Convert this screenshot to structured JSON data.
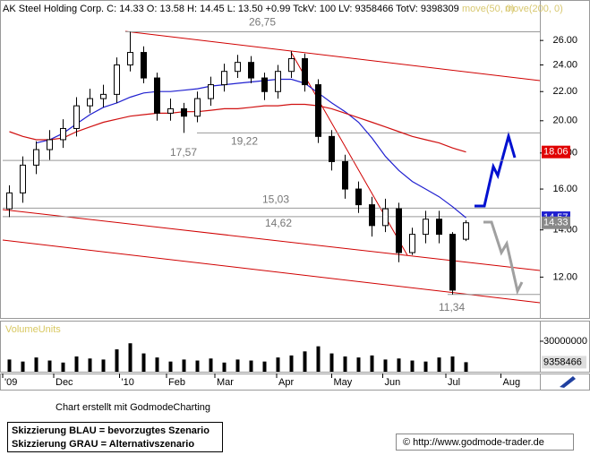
{
  "chart_data": {
    "type": "candlestick",
    "title": "AK Steel Holding Corp. C: 14.33 O: 13.58 H: 14.45 L: 13.50 +0.99 TckV: 100 LV: 9358466 TotV: 9398309",
    "log_scale": true,
    "xlim": [
      -0.5,
      39.5
    ],
    "xticks": [
      {
        "value": -0.5,
        "label": "'09"
      },
      {
        "value": 3.3,
        "label": "Dec"
      },
      {
        "value": 8.2,
        "label": "'10"
      },
      {
        "value": 11.7,
        "label": "Feb"
      },
      {
        "value": 15.3,
        "label": "Mar"
      },
      {
        "value": 19.9,
        "label": "Apr"
      },
      {
        "value": 24,
        "label": "May"
      },
      {
        "value": 27.8,
        "label": "Jun"
      },
      {
        "value": 32.5,
        "label": "Jul"
      },
      {
        "value": 36.6,
        "label": "Aug"
      }
    ],
    "ylim": [
      10.5,
      29.5
    ],
    "yticks": [
      {
        "value": 12,
        "label": "12.00"
      },
      {
        "value": 14,
        "label": "14.00"
      },
      {
        "value": 16,
        "label": "16.00"
      },
      {
        "value": 18,
        "label": "18.00"
      },
      {
        "value": 20,
        "label": "20.00"
      },
      {
        "value": 22,
        "label": "22.00"
      },
      {
        "value": 24,
        "label": "24.00"
      },
      {
        "value": 26,
        "label": "26.00"
      }
    ],
    "x": [
      0,
      1,
      2,
      3,
      4,
      5,
      6,
      7,
      8,
      9,
      10,
      11,
      12,
      13,
      14,
      15,
      16,
      17,
      18,
      19,
      20,
      21,
      22,
      23,
      24,
      25,
      26,
      27,
      28,
      29,
      30,
      31,
      32,
      33,
      34
    ],
    "open": [
      15.0,
      15.8,
      17.3,
      18.2,
      18.8,
      19.5,
      21.0,
      21.5,
      21.8,
      24.0,
      25.0,
      23.0,
      20.5,
      20.8,
      20.3,
      21.5,
      22.5,
      23.5,
      24.2,
      23.0,
      22.0,
      23.5,
      24.5,
      22.5,
      19.0,
      17.5,
      16.0,
      15.2,
      14.2,
      15.0,
      13.0,
      13.8,
      14.5,
      13.8,
      13.58
    ],
    "high": [
      16.2,
      17.8,
      18.7,
      19.4,
      20.1,
      21.6,
      22.2,
      22.5,
      24.6,
      26.75,
      25.5,
      23.4,
      21.5,
      21.2,
      22.0,
      23.1,
      24.1,
      24.8,
      24.7,
      23.4,
      24.0,
      25.1,
      24.9,
      22.9,
      19.4,
      17.9,
      16.4,
      15.6,
      15.5,
      15.3,
      14.1,
      14.9,
      14.9,
      13.9,
      14.45
    ],
    "low": [
      14.6,
      15.3,
      16.8,
      17.6,
      18.3,
      19.0,
      20.5,
      20.9,
      21.2,
      23.5,
      22.6,
      20.0,
      20.0,
      19.22,
      19.9,
      21.0,
      22.0,
      23.0,
      22.6,
      21.4,
      21.5,
      23.0,
      22.0,
      18.6,
      17.0,
      15.5,
      14.8,
      13.7,
      13.9,
      12.6,
      12.9,
      13.4,
      13.4,
      11.34,
      13.5
    ],
    "close": [
      15.8,
      17.3,
      18.2,
      18.8,
      19.5,
      21.0,
      21.5,
      21.8,
      24.0,
      25.0,
      23.0,
      20.5,
      20.8,
      20.3,
      21.5,
      22.5,
      23.5,
      24.2,
      23.0,
      22.0,
      23.5,
      24.5,
      22.5,
      19.0,
      17.5,
      16.0,
      15.2,
      14.2,
      15.0,
      13.0,
      13.8,
      14.5,
      13.8,
      11.5,
      14.33
    ],
    "color": "#000000",
    "series": [
      {
        "name": "move(50, 0)",
        "color": "#2020d0",
        "values": [
          null,
          null,
          18.6,
          18.8,
          19.2,
          19.8,
          20.4,
          20.9,
          21.2,
          21.6,
          21.9,
          22.0,
          22.0,
          22.1,
          22.2,
          22.4,
          22.5,
          22.6,
          22.7,
          22.8,
          22.9,
          22.9,
          22.6,
          21.9,
          21.2,
          20.6,
          19.9,
          18.9,
          17.8,
          17.0,
          16.4,
          16.0,
          15.6,
          15.1,
          14.57
        ]
      },
      {
        "name": "move(200, 0)",
        "color": "#d01010",
        "values": [
          19.3,
          19.0,
          18.8,
          18.8,
          18.9,
          19.3,
          19.6,
          19.9,
          20.1,
          20.3,
          20.4,
          20.5,
          20.5,
          20.6,
          20.6,
          20.7,
          20.8,
          20.8,
          20.9,
          21.0,
          21.0,
          21.1,
          21.1,
          21.0,
          20.8,
          20.5,
          20.2,
          19.9,
          19.6,
          19.3,
          19.0,
          18.8,
          18.6,
          18.3,
          18.06
        ]
      }
    ],
    "last_values": [
      {
        "value": 18.06,
        "color": "#e00000"
      },
      {
        "value": 14.57,
        "color": "#2020d0"
      },
      {
        "value": 14.33,
        "color": "#888888"
      }
    ],
    "levels": [
      {
        "value": 26.75,
        "label": "26,75"
      },
      {
        "value": 19.22,
        "label": "19,22"
      },
      {
        "value": 17.57,
        "label": "17,57"
      },
      {
        "value": 15.03,
        "label": "15,03"
      },
      {
        "value": 14.62,
        "label": "14,62"
      },
      {
        "value": 11.34,
        "label": "11,34"
      }
    ],
    "volume": {
      "label": "VolumeUnits",
      "color": "#000000",
      "values": [
        12000000,
        10000000,
        14000000,
        11000000,
        9000000,
        15000000,
        13000000,
        12000000,
        22000000,
        28000000,
        18000000,
        14000000,
        10000000,
        12000000,
        11000000,
        13000000,
        9000000,
        12000000,
        11000000,
        10000000,
        14000000,
        16000000,
        20000000,
        25000000,
        18000000,
        15000000,
        14000000,
        16000000,
        12000000,
        13000000,
        11000000,
        10000000,
        14000000,
        15000000,
        9358466
      ],
      "ylim": [
        0,
        48500000
      ],
      "yticks": [
        30000000
      ],
      "last_value": 9358466
    }
  },
  "footer": {
    "credit": "Chart erstellt mit GodmodeCharting",
    "legend": [
      "Skizzierung BLAU = bevorzugtes Szenario",
      "Skizzierung GRAU = Alternativszenario"
    ],
    "copyright": "© http://www.godmode-trader.de"
  }
}
